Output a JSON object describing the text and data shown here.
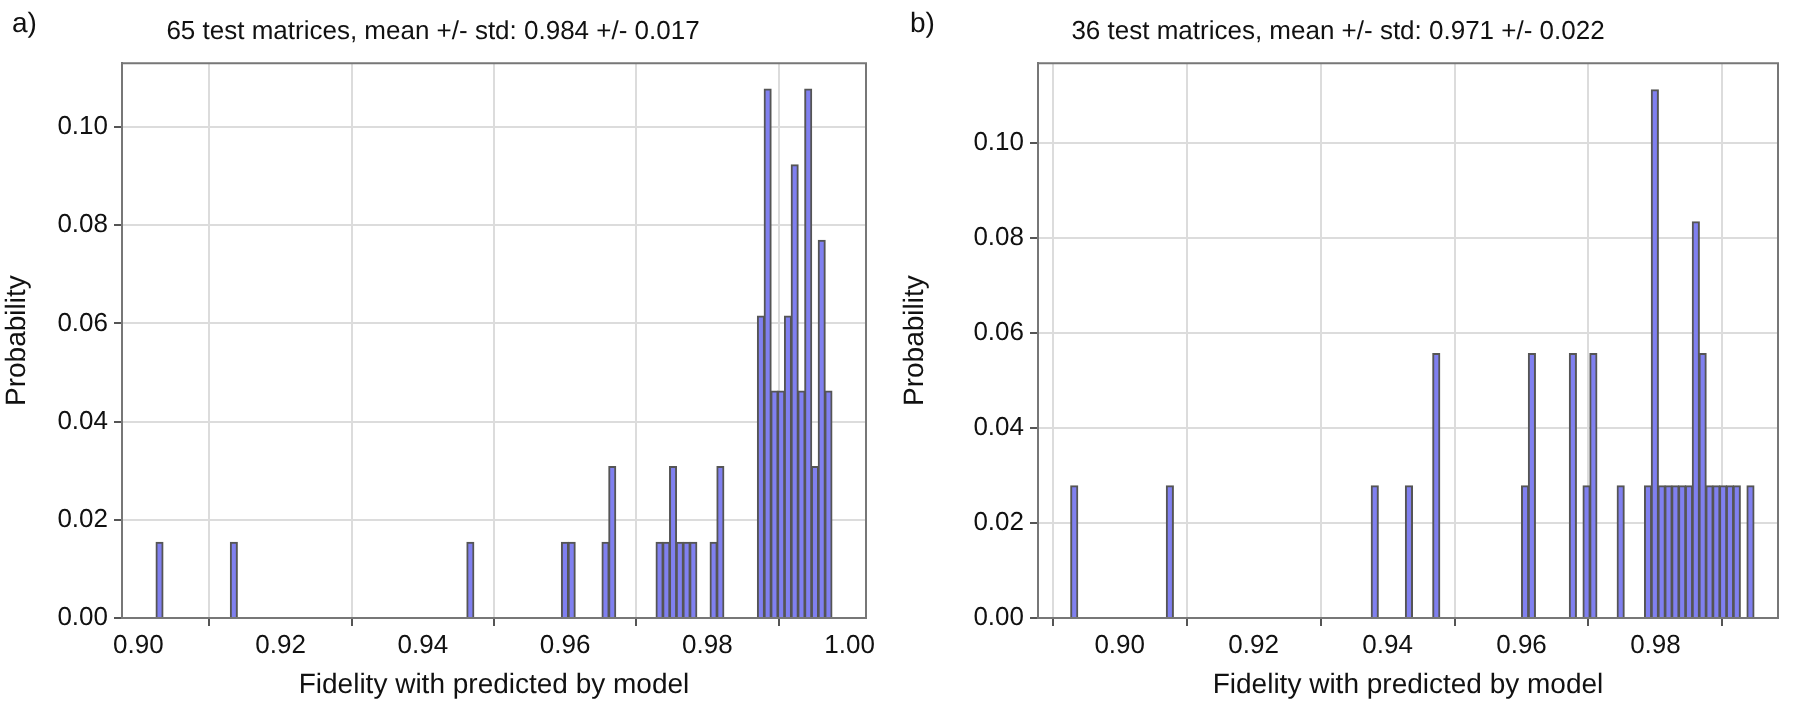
{
  "chart_data": [
    {
      "type": "histogram",
      "title": "65 test matrices, mean +/- std: 0.984 +/- 0.017",
      "xlabel": "Fidelity with predicted by model",
      "ylabel": "Probability",
      "annotations": [
        "a)"
      ],
      "color": "#8080f0",
      "bins": [
        0.9025,
        0.90345,
        0.9044,
        0.90535,
        0.9063,
        0.90725,
        0.9082,
        0.90915,
        0.9101,
        0.91105,
        0.912,
        0.91295,
        0.9139,
        0.91485,
        0.9158,
        0.91675,
        0.9177,
        0.91865,
        0.9196,
        0.92055,
        0.9215,
        0.92245,
        0.9234,
        0.92435,
        0.9253,
        0.92625,
        0.9272,
        0.92815,
        0.9291,
        0.93005,
        0.931,
        0.93195,
        0.9329,
        0.93385,
        0.9348,
        0.93575,
        0.9367,
        0.93765,
        0.9386,
        0.93955,
        0.9405,
        0.94145,
        0.9424,
        0.94335,
        0.9443,
        0.94525,
        0.9462,
        0.94715,
        0.9481,
        0.94905,
        0.95,
        0.95095,
        0.9519,
        0.95285,
        0.9538,
        0.95475,
        0.9557,
        0.95665,
        0.9576,
        0.95855,
        0.9595,
        0.96045,
        0.9614,
        0.96235,
        0.9633,
        0.96425,
        0.9652,
        0.96615,
        0.9671,
        0.96805,
        0.969,
        0.96995,
        0.9709,
        0.97185,
        0.9728,
        0.97375,
        0.9747,
        0.97565,
        0.9766,
        0.97755,
        0.9785,
        0.97945,
        0.9804,
        0.98135,
        0.9823,
        0.98325,
        0.9842,
        0.98515,
        0.9861,
        0.98705,
        0.988,
        0.98895,
        0.9899,
        0.99085,
        0.9918,
        0.99275,
        0.9937,
        0.99465,
        0.9956,
        0.99655,
        0.9975
      ],
      "values": [
        0.0154,
        0,
        0,
        0,
        0,
        0,
        0,
        0,
        0,
        0,
        0,
        0.0154,
        0,
        0,
        0,
        0,
        0,
        0,
        0,
        0,
        0,
        0,
        0,
        0,
        0,
        0,
        0,
        0,
        0,
        0,
        0,
        0,
        0,
        0,
        0,
        0,
        0,
        0,
        0,
        0,
        0,
        0,
        0,
        0,
        0,
        0,
        0.0154,
        0,
        0,
        0,
        0,
        0,
        0,
        0,
        0,
        0,
        0,
        0,
        0,
        0,
        0.0154,
        0.0154,
        0,
        0,
        0,
        0,
        0.0154,
        0.0308,
        0,
        0,
        0,
        0,
        0,
        0,
        0.0154,
        0.0154,
        0.0308,
        0.0154,
        0.0154,
        0.0154,
        0,
        0,
        0.0154,
        0.0308,
        0,
        0,
        0,
        0,
        0,
        0.0615,
        0.1077,
        0.0462,
        0.0462,
        0.0615,
        0.0923,
        0.0462,
        0.1077,
        0.0308,
        0.0769,
        0.0462
      ],
      "xlim": [
        0.8977,
        1.0023
      ],
      "ylim": [
        0,
        0.113
      ],
      "xticks": [
        {
          "value": 0.9,
          "label": "0.90"
        },
        {
          "value": 0.92,
          "label": "0.92"
        },
        {
          "value": 0.94,
          "label": "0.94"
        },
        {
          "value": 0.96,
          "label": "0.96"
        },
        {
          "value": 0.98,
          "label": "0.98"
        },
        {
          "value": 1.0,
          "label": "1.00"
        }
      ],
      "yticks": [
        {
          "value": 0,
          "label": "0.00"
        },
        {
          "value": 0.02,
          "label": "0.02"
        },
        {
          "value": 0.04,
          "label": "0.04"
        },
        {
          "value": 0.06,
          "label": "0.06"
        },
        {
          "value": 0.08,
          "label": "0.08"
        },
        {
          "value": 0.1,
          "label": "0.10"
        }
      ],
      "grid": true
    },
    {
      "type": "histogram",
      "title": "36 test matrices, mean +/- std: 0.971 +/- 0.022",
      "xlabel": "Fidelity with predicted by model",
      "ylabel": "Probability",
      "annotations": [
        "b)"
      ],
      "color": "#8080f0",
      "bins": [
        0.8927,
        0.89372,
        0.89474,
        0.89576,
        0.89678,
        0.8978,
        0.89882,
        0.89984,
        0.90086,
        0.90188,
        0.9029,
        0.90392,
        0.90494,
        0.90596,
        0.90698,
        0.908,
        0.90902,
        0.91004,
        0.91106,
        0.91208,
        0.9131,
        0.91412,
        0.91514,
        0.91616,
        0.91718,
        0.9182,
        0.91922,
        0.92024,
        0.92126,
        0.92228,
        0.9233,
        0.92432,
        0.92534,
        0.92636,
        0.92738,
        0.9284,
        0.92942,
        0.93044,
        0.93146,
        0.93248,
        0.9335,
        0.93452,
        0.93554,
        0.93656,
        0.93758,
        0.9386,
        0.93962,
        0.94064,
        0.94166,
        0.94268,
        0.9437,
        0.94472,
        0.94574,
        0.94676,
        0.94778,
        0.9488,
        0.94982,
        0.95084,
        0.95186,
        0.95288,
        0.9539,
        0.95492,
        0.95594,
        0.95696,
        0.95798,
        0.959,
        0.96002,
        0.96104,
        0.96206,
        0.96308,
        0.9641,
        0.96512,
        0.96614,
        0.96716,
        0.96818,
        0.9692,
        0.97022,
        0.97124,
        0.97226,
        0.97328,
        0.9743,
        0.97532,
        0.97634,
        0.97736,
        0.97838,
        0.9794,
        0.98042,
        0.98144,
        0.98246,
        0.98348,
        0.9845,
        0.98552,
        0.98654,
        0.98756,
        0.98858,
        0.9896,
        0.99062,
        0.99164,
        0.99266,
        0.99368,
        0.9947
      ],
      "values": [
        0.0278,
        0,
        0,
        0,
        0,
        0,
        0,
        0,
        0,
        0,
        0,
        0,
        0,
        0,
        0.0278,
        0,
        0,
        0,
        0,
        0,
        0,
        0,
        0,
        0,
        0,
        0,
        0,
        0,
        0,
        0,
        0,
        0,
        0,
        0,
        0,
        0,
        0,
        0,
        0,
        0,
        0,
        0,
        0,
        0,
        0.0278,
        0,
        0,
        0,
        0,
        0.0278,
        0,
        0,
        0,
        0.0556,
        0,
        0,
        0,
        0,
        0,
        0,
        0,
        0,
        0,
        0,
        0,
        0,
        0.0278,
        0.0556,
        0,
        0,
        0,
        0,
        0,
        0.0556,
        0,
        0.0278,
        0.0556,
        0,
        0,
        0,
        0.0278,
        0,
        0,
        0,
        0.0278,
        0.1111,
        0.0278,
        0.0278,
        0.0278,
        0.0278,
        0.0278,
        0.0833,
        0.0556,
        0.0278,
        0.0278,
        0.0278,
        0.0278,
        0.0278,
        0,
        0.0278
      ],
      "xlim": [
        0.8878,
        0.9983
      ],
      "ylim": [
        0,
        0.1167
      ],
      "xticks": [
        {
          "value": 0.9,
          "label": "0.90"
        },
        {
          "value": 0.92,
          "label": "0.92"
        },
        {
          "value": 0.94,
          "label": "0.94"
        },
        {
          "value": 0.96,
          "label": "0.96"
        },
        {
          "value": 0.98,
          "label": "0.98"
        }
      ],
      "yticks": [
        {
          "value": 0,
          "label": "0.00"
        },
        {
          "value": 0.02,
          "label": "0.02"
        },
        {
          "value": 0.04,
          "label": "0.04"
        },
        {
          "value": 0.06,
          "label": "0.06"
        },
        {
          "value": 0.08,
          "label": "0.08"
        },
        {
          "value": 0.1,
          "label": "0.10"
        }
      ],
      "grid": true
    }
  ]
}
